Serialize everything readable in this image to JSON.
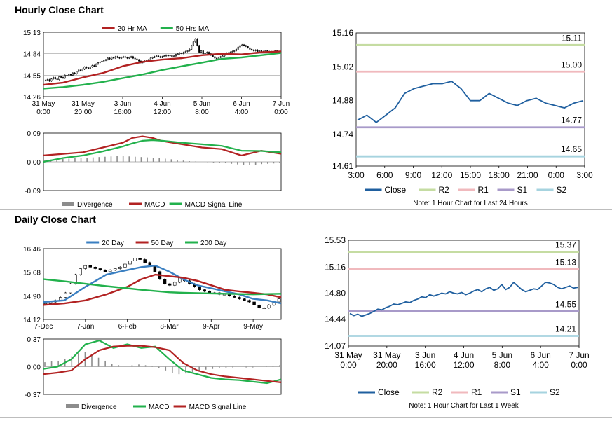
{
  "titles": {
    "hourly": "Hourly Close Chart",
    "daily": "Daily Close Chart"
  },
  "colors": {
    "red": "#b22222",
    "green": "#22b14c",
    "blue": "#3a7fc1",
    "navy": "#1f5f9f",
    "r2": "#c5dca2",
    "r1": "#f0b9bd",
    "s1": "#a89ac9",
    "s2": "#a6d3df",
    "candle": "#000000",
    "hist": "#8c8c8c"
  },
  "chart_data": [
    {
      "id": "hourly_ma",
      "type": "line",
      "title": "Hourly Close Chart",
      "legend": [
        "20 Hr MA",
        "50 Hrs MA"
      ],
      "y_ticks": [
        "15.13",
        "14.84",
        "14.55",
        "14.26"
      ],
      "ylim": [
        14.26,
        15.13
      ],
      "x_ticks": [
        [
          "31 May",
          "0:00"
        ],
        [
          "31 May",
          "20:00"
        ],
        [
          "3 Jun",
          "16:00"
        ],
        [
          "4 Jun",
          "12:00"
        ],
        [
          "5 Jun",
          "8:00"
        ],
        [
          "6 Jun",
          "4:00"
        ],
        [
          "7 Jun",
          "0:00"
        ]
      ],
      "x_index": [
        0,
        20,
        40,
        60,
        80,
        100,
        120
      ],
      "price_close": [
        14.48,
        14.49,
        14.47,
        14.5,
        14.52,
        14.5,
        14.49,
        14.53,
        14.52,
        14.51,
        14.55,
        14.54,
        14.56,
        14.55,
        14.58,
        14.57,
        14.6,
        14.62,
        14.61,
        14.63,
        14.66,
        14.65,
        14.64,
        14.66,
        14.68,
        14.67,
        14.7,
        14.72,
        14.73,
        14.74,
        14.75,
        14.76,
        14.78,
        14.77,
        14.79,
        14.78,
        14.8,
        14.79,
        14.78,
        14.79,
        14.8,
        14.79,
        14.78,
        14.79,
        14.8,
        14.78,
        14.77,
        14.76,
        14.74,
        14.72,
        14.73,
        14.74,
        14.75,
        14.76,
        14.78,
        14.79,
        14.8,
        14.81,
        14.8,
        14.79,
        14.8,
        14.81,
        14.82,
        14.81,
        14.82,
        14.8,
        14.81,
        14.83,
        14.84,
        14.85,
        14.84,
        14.86,
        14.87,
        14.88,
        14.9,
        14.95,
        15.0,
        15.04,
        14.95,
        14.86,
        14.88,
        14.84,
        14.85,
        14.86,
        14.84,
        14.82,
        14.8,
        14.78,
        14.77,
        14.79,
        14.8,
        14.81,
        14.83,
        14.85,
        14.84,
        14.86,
        14.87,
        14.88,
        14.9,
        14.93,
        14.95,
        14.96,
        14.95,
        14.94,
        14.92,
        14.9,
        14.89,
        14.88,
        14.89,
        14.87,
        14.88,
        14.86,
        14.87,
        14.88,
        14.86,
        14.87,
        14.86,
        14.87,
        14.88,
        14.87,
        14.87
      ],
      "series": [
        {
          "name": "20 Hr MA",
          "color": "#b22222",
          "x": [
            0,
            10,
            20,
            30,
            40,
            50,
            60,
            70,
            80,
            90,
            100,
            110,
            120
          ],
          "values": [
            14.42,
            14.45,
            14.52,
            14.58,
            14.67,
            14.73,
            14.76,
            14.78,
            14.82,
            14.84,
            14.83,
            14.86,
            14.87
          ]
        },
        {
          "name": "50 Hrs MA",
          "color": "#22b14c",
          "x": [
            0,
            10,
            20,
            30,
            40,
            50,
            60,
            70,
            80,
            90,
            100,
            110,
            120
          ],
          "values": [
            14.37,
            14.39,
            14.42,
            14.46,
            14.51,
            14.56,
            14.62,
            14.67,
            14.72,
            14.77,
            14.79,
            14.82,
            14.85
          ]
        }
      ]
    },
    {
      "id": "hourly_macd",
      "type": "line",
      "legend": [
        "Divergence",
        "MACD",
        "MACD Signal Line"
      ],
      "y_ticks": [
        "0.09",
        "0.00",
        "-0.09"
      ],
      "ylim": [
        -0.09,
        0.09
      ],
      "series": [
        {
          "name": "MACD",
          "color": "#b22222",
          "x": [
            0,
            10,
            20,
            30,
            40,
            45,
            50,
            55,
            60,
            70,
            80,
            90,
            100,
            110,
            120
          ],
          "values": [
            0.02,
            0.025,
            0.03,
            0.045,
            0.06,
            0.075,
            0.08,
            0.075,
            0.065,
            0.055,
            0.045,
            0.04,
            0.02,
            0.035,
            0.025
          ]
        },
        {
          "name": "MACD Signal Line",
          "color": "#22b14c",
          "x": [
            0,
            10,
            20,
            30,
            40,
            45,
            50,
            55,
            60,
            70,
            80,
            90,
            100,
            110,
            120
          ],
          "values": [
            0.0,
            0.012,
            0.02,
            0.033,
            0.048,
            0.058,
            0.066,
            0.068,
            0.066,
            0.06,
            0.055,
            0.05,
            0.035,
            0.034,
            0.03
          ]
        }
      ],
      "divergence": [
        0.006,
        0.007,
        0.008,
        0.009,
        0.01,
        0.011,
        0.012,
        0.013,
        0.014,
        0.015,
        0.016,
        0.017,
        0.018,
        0.018,
        0.017,
        0.016,
        0.015,
        0.014,
        0.013,
        0.012,
        0.01,
        0.008,
        0.006,
        0.004,
        0.002,
        0.001,
        0.0,
        -0.001,
        -0.002,
        -0.003,
        -0.004,
        -0.006,
        -0.008,
        -0.009,
        -0.01,
        -0.009,
        -0.007,
        -0.006,
        -0.005,
        -0.004
      ]
    },
    {
      "id": "hourly_pivots",
      "type": "line",
      "y_ticks": [
        "15.16",
        "15.02",
        "14.88",
        "14.74",
        "14.61"
      ],
      "ylim": [
        14.61,
        15.16
      ],
      "x_ticks": [
        "3:00",
        "6:00",
        "9:00",
        "12:00",
        "15:00",
        "18:00",
        "21:00",
        "0:00",
        "3:00"
      ],
      "levels": [
        {
          "name": "R2",
          "value": 15.11,
          "label": "15.11"
        },
        {
          "name": "R1",
          "value": 15.0,
          "label": "15.00"
        },
        {
          "name": "S1",
          "value": 14.77,
          "label": "14.77"
        },
        {
          "name": "S2",
          "value": 14.65,
          "label": "14.65"
        }
      ],
      "close_x": [
        0,
        1,
        2,
        3,
        4,
        5,
        6,
        7,
        8,
        9,
        10,
        11,
        12,
        13,
        14,
        15,
        16,
        17,
        18,
        19,
        20,
        21,
        22,
        23,
        24
      ],
      "close": [
        14.8,
        14.82,
        14.79,
        14.82,
        14.85,
        14.91,
        14.93,
        14.94,
        14.95,
        14.95,
        14.96,
        14.93,
        14.88,
        14.88,
        14.91,
        14.89,
        14.87,
        14.86,
        14.88,
        14.89,
        14.87,
        14.86,
        14.85,
        14.87,
        14.88
      ],
      "legend": [
        "Close",
        "R2",
        "R1",
        "S1",
        "S2"
      ],
      "note": "Note: 1 Hour Chart for Last 24 Hours"
    },
    {
      "id": "daily_ma",
      "type": "line",
      "title": "Daily Close Chart",
      "legend": [
        "20 Day",
        "50 Day",
        "200 Day"
      ],
      "y_ticks": [
        "16.46",
        "15.68",
        "14.90",
        "14.12"
      ],
      "ylim": [
        14.12,
        16.46
      ],
      "x_ticks": [
        "7-Dec",
        "7-Jan",
        "6-Feb",
        "8-Mar",
        "9-Apr",
        "9-May"
      ],
      "x_index": [
        0,
        30,
        60,
        90,
        120,
        150
      ],
      "price_close": [
        14.65,
        14.7,
        14.75,
        14.85,
        15.0,
        15.3,
        15.6,
        15.8,
        15.9,
        15.85,
        15.8,
        15.75,
        15.7,
        15.75,
        15.8,
        15.85,
        15.95,
        16.05,
        16.15,
        16.1,
        16.0,
        15.9,
        15.7,
        15.45,
        15.3,
        15.25,
        15.35,
        15.5,
        15.4,
        15.3,
        15.2,
        15.1,
        15.05,
        15.0,
        15.0,
        14.95,
        14.95,
        14.9,
        14.85,
        14.8,
        14.75,
        14.7,
        14.6,
        14.5,
        14.5,
        14.6,
        14.7,
        14.8
      ],
      "series": [
        {
          "name": "20 Day",
          "color": "#3a7fc1",
          "x": [
            0,
            15,
            30,
            45,
            60,
            70,
            80,
            90,
            100,
            110,
            120,
            130,
            140,
            150,
            160,
            170
          ],
          "values": [
            14.7,
            14.75,
            15.2,
            15.6,
            15.75,
            15.85,
            15.9,
            15.7,
            15.45,
            15.25,
            15.15,
            15.05,
            14.95,
            14.8,
            14.75,
            14.65
          ]
        },
        {
          "name": "50 Day",
          "color": "#b22222",
          "x": [
            0,
            15,
            30,
            45,
            60,
            70,
            80,
            90,
            100,
            110,
            120,
            130,
            140,
            150,
            160,
            170
          ],
          "values": [
            14.6,
            14.65,
            14.75,
            14.95,
            15.2,
            15.45,
            15.6,
            15.55,
            15.5,
            15.4,
            15.25,
            15.1,
            15.05,
            15.0,
            14.95,
            14.85
          ]
        },
        {
          "name": "200 Day",
          "color": "#22b14c",
          "x": [
            0,
            15,
            30,
            45,
            60,
            70,
            80,
            90,
            100,
            110,
            120,
            130,
            140,
            150,
            160,
            170
          ],
          "values": [
            15.45,
            15.38,
            15.3,
            15.22,
            15.15,
            15.1,
            15.06,
            15.02,
            15.0,
            14.99,
            14.98,
            14.97,
            14.96,
            14.95,
            14.96,
            14.97
          ]
        }
      ]
    },
    {
      "id": "daily_macd",
      "type": "line",
      "legend": [
        "Divergence",
        "MACD",
        "MACD Signal Line"
      ],
      "y_ticks": [
        "0.37",
        "0.00",
        "-0.37"
      ],
      "ylim": [
        -0.37,
        0.37
      ],
      "series": [
        {
          "name": "MACD",
          "color": "#22b14c",
          "x": [
            0,
            10,
            20,
            30,
            40,
            50,
            60,
            70,
            80,
            90,
            100,
            110,
            120,
            130,
            140,
            150,
            160,
            170
          ],
          "values": [
            -0.03,
            0.0,
            0.1,
            0.3,
            0.35,
            0.25,
            0.3,
            0.25,
            0.27,
            0.1,
            -0.05,
            -0.1,
            -0.15,
            -0.17,
            -0.18,
            -0.2,
            -0.22,
            -0.17
          ]
        },
        {
          "name": "MACD Signal Line",
          "color": "#b22222",
          "x": [
            0,
            10,
            20,
            30,
            40,
            50,
            60,
            70,
            80,
            90,
            100,
            110,
            120,
            130,
            140,
            150,
            160,
            170
          ],
          "values": [
            -0.1,
            -0.08,
            -0.05,
            0.1,
            0.22,
            0.27,
            0.28,
            0.28,
            0.26,
            0.22,
            0.05,
            -0.05,
            -0.1,
            -0.13,
            -0.15,
            -0.17,
            -0.19,
            -0.21
          ]
        }
      ],
      "divergence": [
        0.06,
        0.07,
        0.08,
        0.1,
        0.14,
        0.18,
        0.2,
        0.16,
        0.12,
        0.08,
        0.04,
        0.02,
        0.0,
        0.02,
        0.03,
        0.02,
        0.01,
        -0.02,
        -0.05,
        -0.08,
        -0.1,
        -0.09,
        -0.07,
        -0.05,
        -0.04,
        -0.03,
        -0.02,
        -0.02,
        -0.01,
        0.0,
        -0.01,
        -0.01,
        0.0,
        0.01,
        0.01,
        0.02
      ]
    },
    {
      "id": "daily_pivots",
      "type": "line",
      "y_ticks": [
        "15.53",
        "15.16",
        "14.80",
        "14.44",
        "14.07"
      ],
      "ylim": [
        14.07,
        15.53
      ],
      "x_ticks": [
        [
          "31 May",
          "0:00"
        ],
        [
          "31 May",
          "20:00"
        ],
        [
          "3 Jun",
          "16:00"
        ],
        [
          "4 Jun",
          "12:00"
        ],
        [
          "5 Jun",
          "8:00"
        ],
        [
          "6 Jun",
          "4:00"
        ],
        [
          "7 Jun",
          "0:00"
        ]
      ],
      "levels": [
        {
          "name": "R2",
          "value": 15.37,
          "label": "15.37"
        },
        {
          "name": "R1",
          "value": 15.13,
          "label": "15.13"
        },
        {
          "name": "S1",
          "value": 14.55,
          "label": "14.55"
        },
        {
          "name": "S2",
          "value": 14.21,
          "label": "14.21"
        }
      ],
      "close": [
        14.52,
        14.49,
        14.51,
        14.48,
        14.5,
        14.52,
        14.55,
        14.58,
        14.57,
        14.6,
        14.62,
        14.65,
        14.64,
        14.66,
        14.68,
        14.67,
        14.7,
        14.72,
        14.75,
        14.74,
        14.78,
        14.76,
        14.78,
        14.8,
        14.79,
        14.82,
        14.8,
        14.79,
        14.81,
        14.78,
        14.8,
        14.83,
        14.85,
        14.82,
        14.86,
        14.88,
        14.84,
        14.86,
        14.92,
        14.85,
        14.88,
        14.95,
        14.9,
        14.85,
        14.82,
        14.84,
        14.86,
        14.85,
        14.9,
        14.95,
        14.94,
        14.92,
        14.88,
        14.86,
        14.88,
        14.9,
        14.87,
        14.88
      ],
      "legend": [
        "Close",
        "R2",
        "R1",
        "S1",
        "S2"
      ],
      "note": "Note: 1 Hour Chart for Last 1 Week"
    }
  ]
}
